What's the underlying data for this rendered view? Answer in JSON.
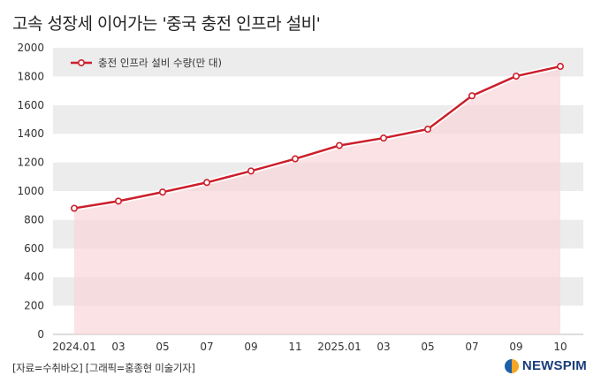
{
  "chart_data": {
    "type": "line",
    "title": "고속 성장세 이어가는 '중국 충전 인프라 설비'",
    "x": [
      "2024.01",
      "03",
      "05",
      "07",
      "09",
      "11",
      "2025.01",
      "03",
      "05",
      "07",
      "09",
      "10"
    ],
    "series": [
      {
        "name": "충전 인프라 설비 수량(만 대)",
        "values": [
          880,
          930,
          993,
          1060,
          1140,
          1225,
          1318,
          1370,
          1432,
          1665,
          1802,
          1870
        ]
      }
    ],
    "xlabel": "",
    "ylabel": "",
    "ylim": [
      0,
      2000
    ],
    "yticks": [
      0,
      200,
      400,
      600,
      800,
      1000,
      1200,
      1400,
      1600,
      1800,
      2000
    ],
    "grid": "alternating horizontal bands",
    "legend": "top-left",
    "line_color": "#cc1f2b",
    "fill_color": "#f9d6d8"
  },
  "footer": {
    "source": "[자료=수취바오] [그래픽=홍종현 미술기자]"
  },
  "brand": {
    "name": "NEWSPIM",
    "icon": "newspim-logo-icon"
  }
}
